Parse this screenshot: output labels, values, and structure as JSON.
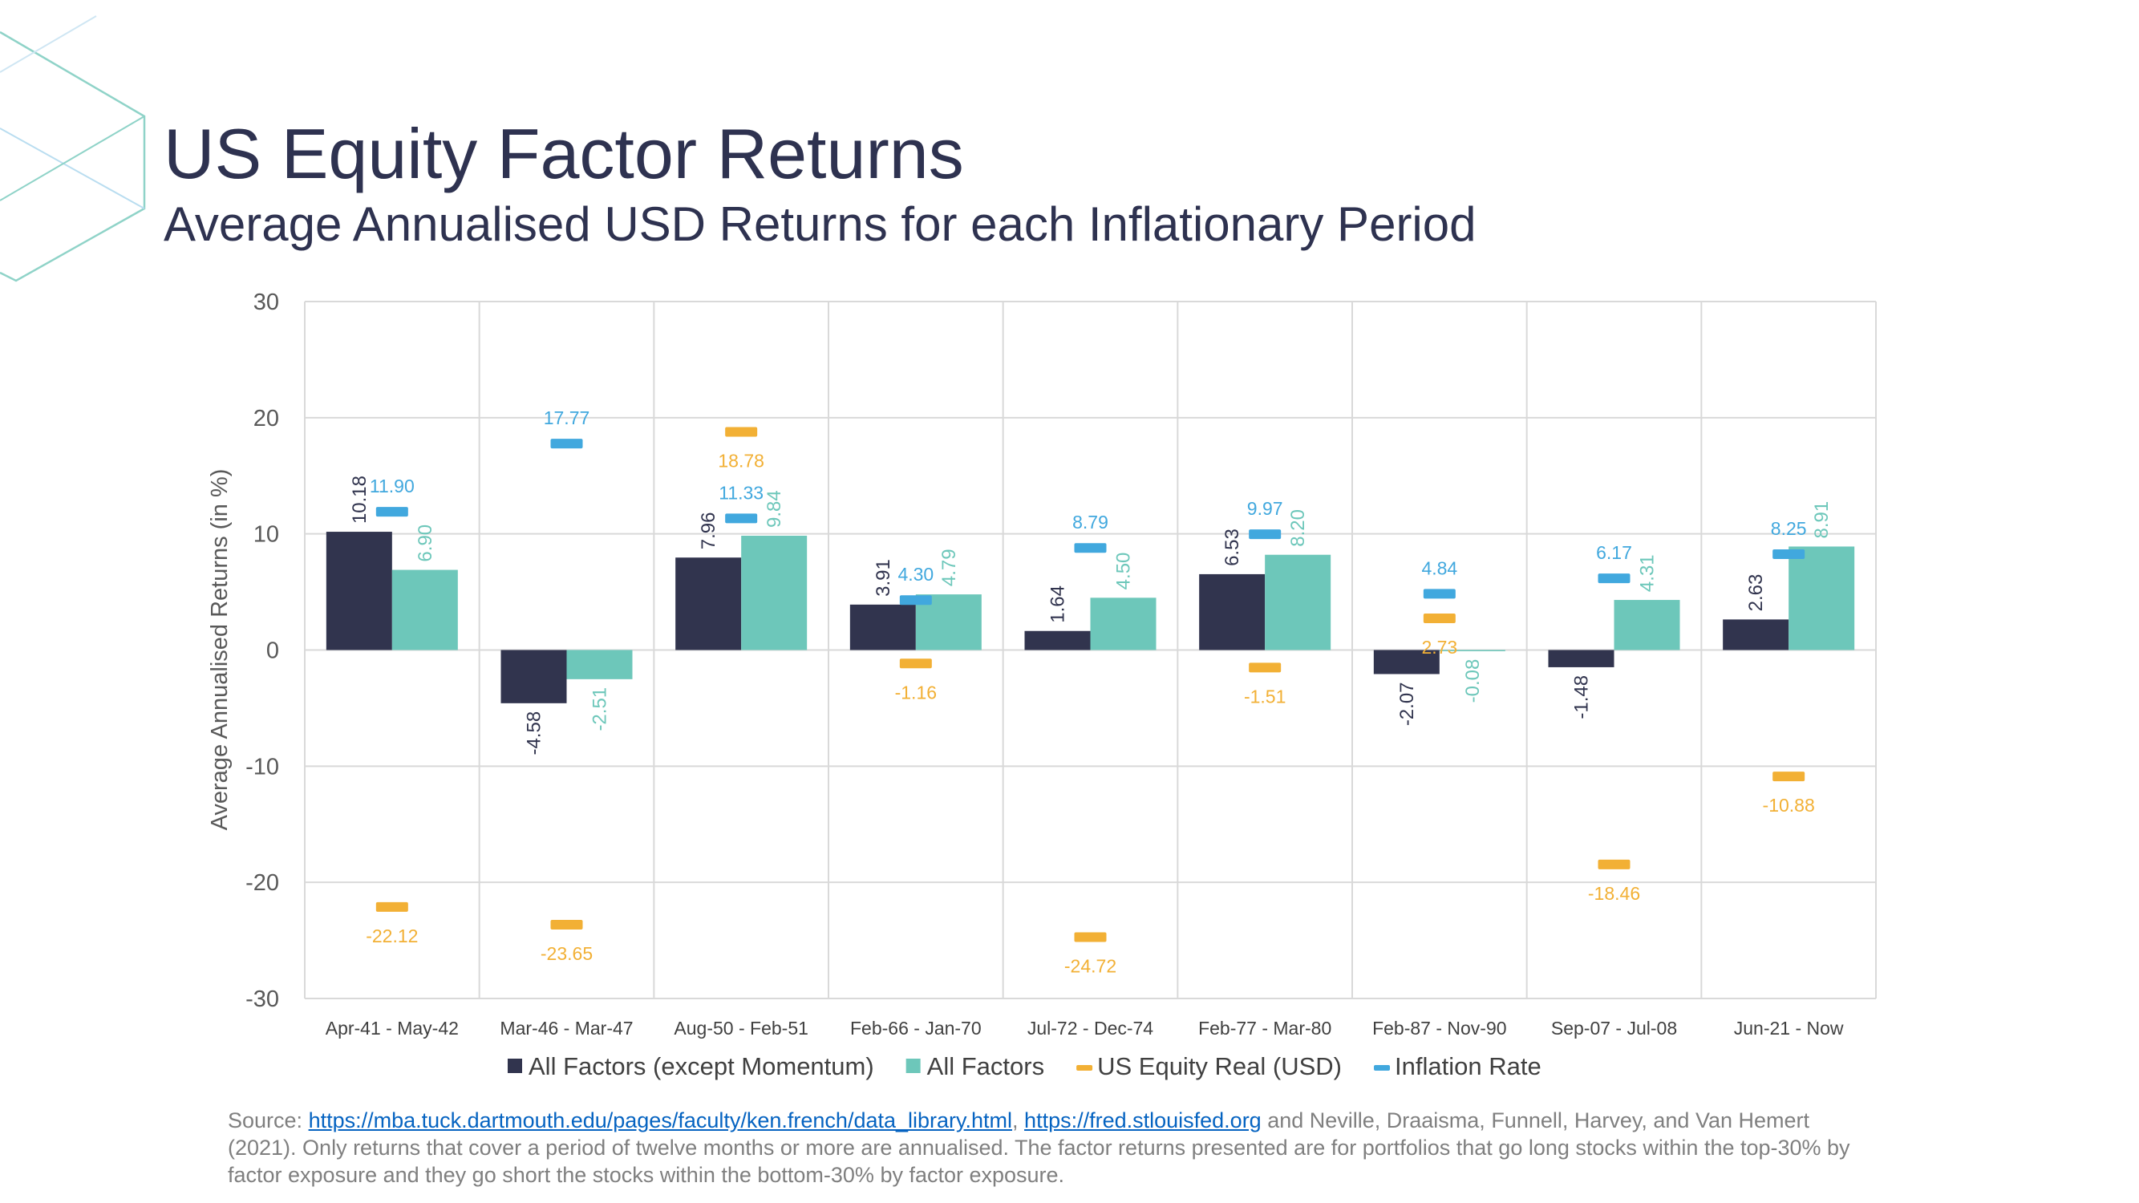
{
  "header": {
    "title": "US Equity Factor Returns",
    "subtitle": "Average Annualised USD Returns for each Inflationary Period"
  },
  "colors": {
    "all_factors_ex_mom": "#31344E",
    "all_factors": "#6DC7BA",
    "us_equity_real": "#F2B035",
    "inflation": "#41A8DE",
    "grid": "#D9D9D9",
    "title": "#2E3250"
  },
  "chart_data": {
    "type": "bar",
    "title": "",
    "xlabel": "",
    "ylabel": "Average Annualised Returns (in %)",
    "ylim": [
      -30,
      30
    ],
    "yticks": [
      "30",
      "20",
      "10",
      "0",
      "-10",
      "-20",
      "-30"
    ],
    "grid": true,
    "legend_position": "bottom",
    "categories": [
      "Apr-41 - May-42",
      "Mar-46 - Mar-47",
      "Aug-50 - Feb-51",
      "Feb-66 - Jan-70",
      "Jul-72 - Dec-74",
      "Feb-77 - Mar-80",
      "Feb-87 - Nov-90",
      "Sep-07 - Jul-08",
      "Jun-21 - Now"
    ],
    "series": [
      {
        "name": "All Factors (except Momentum)",
        "kind": "bar",
        "values": [
          10.18,
          -4.58,
          7.96,
          3.91,
          1.64,
          6.53,
          -2.07,
          -1.48,
          2.63
        ],
        "labels": [
          "10.18",
          "-4.58",
          "7.96",
          "3.91",
          "1.64",
          "6.53",
          "-2.07",
          "-1.48",
          "2.63"
        ]
      },
      {
        "name": "All Factors",
        "kind": "bar",
        "values": [
          6.9,
          -2.51,
          9.84,
          4.79,
          4.5,
          8.2,
          -0.08,
          4.31,
          8.91
        ],
        "labels": [
          "6.90",
          "-2.51",
          "9.84",
          "4.79",
          "4.50",
          "8.20",
          "-0.08",
          "4.31",
          "8.91"
        ]
      },
      {
        "name": "US Equity Real (USD)",
        "kind": "marker",
        "values": [
          -22.12,
          -23.65,
          18.78,
          -1.16,
          -24.72,
          -1.51,
          2.73,
          -18.46,
          -10.88
        ],
        "labels": [
          "-22.12",
          "-23.65",
          "18.78",
          "-1.16",
          "-24.72",
          "-1.51",
          "2.73",
          "-18.46",
          "-10.88"
        ]
      },
      {
        "name": "Inflation Rate",
        "kind": "marker",
        "values": [
          11.9,
          17.77,
          11.33,
          4.3,
          8.79,
          9.97,
          4.84,
          6.17,
          8.25
        ],
        "labels": [
          "11.90",
          "17.77",
          "11.33",
          "4.30",
          "8.79",
          "9.97",
          "4.84",
          "6.17",
          "8.25"
        ]
      }
    ]
  },
  "footer": {
    "prefix": "Source: ",
    "link1": "https://mba.tuck.dartmouth.edu/pages/faculty/ken.french/data_library.html",
    "sep": ", ",
    "link2": "https://fred.stlouisfed.org",
    "rest": " and Neville, Draaisma, Funnell, Harvey, and Van Hemert (2021). Only returns that cover a period of twelve months or more are annualised. The factor returns presented are for portfolios that go long stocks within the top-30% by factor exposure and they go short the stocks within the bottom-30% by factor exposure."
  }
}
